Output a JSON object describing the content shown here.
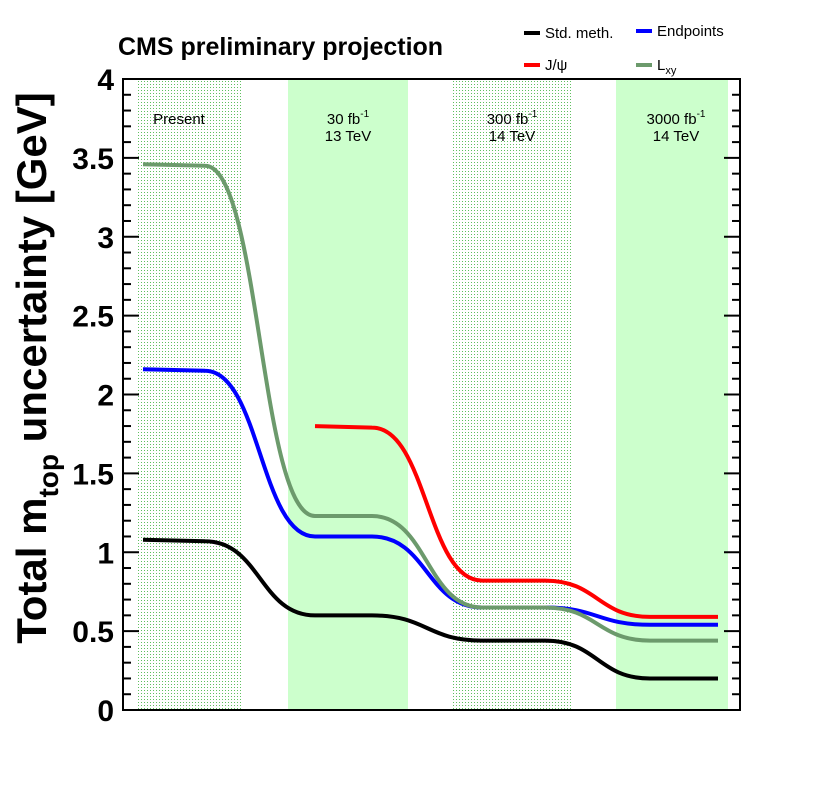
{
  "chart_data": {
    "type": "line",
    "title": "CMS preliminary projection",
    "ylabel": {
      "pre": "Total m",
      "sub": "top",
      "post": " uncertainty [GeV]"
    },
    "ylim": [
      0,
      4
    ],
    "yticks": [
      "0",
      "0.5",
      "1",
      "1.5",
      "2",
      "2.5",
      "3",
      "3.5",
      "4"
    ],
    "bands": [
      {
        "line1": "Present",
        "line2": "",
        "style": "dotted"
      },
      {
        "line1": "30 fb",
        "sup": "-1",
        "line2": "13 TeV",
        "style": "solid"
      },
      {
        "line1": "300 fb",
        "sup": "-1",
        "line2": "14 TeV",
        "style": "dotted"
      },
      {
        "line1": "3000 fb",
        "sup": "-1",
        "line2": "14 TeV",
        "style": "solid"
      }
    ],
    "stages": [
      "Present",
      "30 fb-1 13 TeV",
      "300 fb-1 14 TeV",
      "3000 fb-1 14 TeV"
    ],
    "series": [
      {
        "name": "Std. meth.",
        "color": "#000000",
        "values": [
          1.07,
          0.6,
          0.44,
          0.2
        ]
      },
      {
        "name": "Endpoints",
        "color": "#0000ff",
        "values": [
          2.15,
          1.1,
          0.65,
          0.54
        ]
      },
      {
        "name": "J/ψ",
        "color": "#ff0000",
        "values": [
          null,
          1.79,
          0.82,
          0.59
        ]
      },
      {
        "name": "L",
        "name_sub": "xy",
        "color": "#6c9a6c",
        "values": [
          3.45,
          1.23,
          0.65,
          0.44
        ]
      }
    ],
    "grid": false,
    "legend_position": "top-right"
  }
}
